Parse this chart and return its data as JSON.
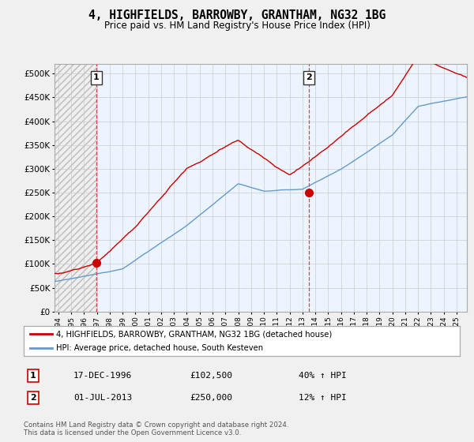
{
  "title": "4, HIGHFIELDS, BARROWBY, GRANTHAM, NG32 1BG",
  "subtitle": "Price paid vs. HM Land Registry's House Price Index (HPI)",
  "title_fontsize": 10.5,
  "subtitle_fontsize": 8.5,
  "ylabel_ticks": [
    "£0",
    "£50K",
    "£100K",
    "£150K",
    "£200K",
    "£250K",
    "£300K",
    "£350K",
    "£400K",
    "£450K",
    "£500K"
  ],
  "ytick_values": [
    0,
    50000,
    100000,
    150000,
    200000,
    250000,
    300000,
    350000,
    400000,
    450000,
    500000
  ],
  "ylim": [
    0,
    520000
  ],
  "xlim_start": 1993.7,
  "xlim_end": 2025.8,
  "x_ticks": [
    1994,
    1995,
    1996,
    1997,
    1998,
    1999,
    2000,
    2001,
    2002,
    2003,
    2004,
    2005,
    2006,
    2007,
    2008,
    2009,
    2010,
    2011,
    2012,
    2013,
    2014,
    2015,
    2016,
    2017,
    2018,
    2019,
    2020,
    2021,
    2022,
    2023,
    2024,
    2025
  ],
  "sale1_x": 1996.96,
  "sale1_y": 102500,
  "sale2_x": 2013.5,
  "sale2_y": 250000,
  "sale_color": "#cc0000",
  "hpi_color": "#6699cc",
  "hatch_color": "#cccccc",
  "light_blue_fill": "#ddeeff",
  "legend_line1": "4, HIGHFIELDS, BARROWBY, GRANTHAM, NG32 1BG (detached house)",
  "legend_line2": "HPI: Average price, detached house, South Kesteven",
  "annotation1": [
    "1",
    "17-DEC-1996",
    "£102,500",
    "40% ↑ HPI"
  ],
  "annotation2": [
    "2",
    "01-JUL-2013",
    "£250,000",
    "12% ↑ HPI"
  ],
  "footer": "Contains HM Land Registry data © Crown copyright and database right 2024.\nThis data is licensed under the Open Government Licence v3.0.",
  "vline1_x": 1996.96,
  "vline2_x": 2013.5,
  "bg_color": "#f0f0f0",
  "plot_bg_color": "#ffffff"
}
